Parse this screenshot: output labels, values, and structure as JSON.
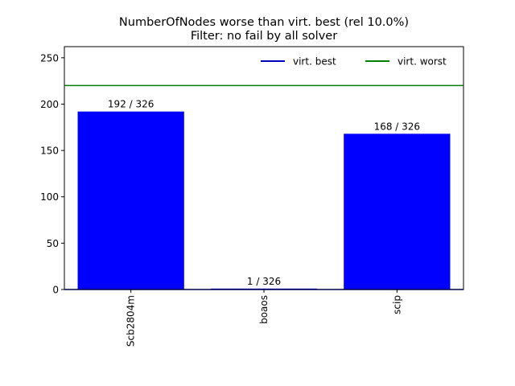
{
  "chart_data": {
    "type": "bar",
    "title": "NumberOfNodes worse than virt. best (rel 10.0%)",
    "subtitle": "Filter: no fail by all solver",
    "xlabel": "",
    "ylabel": "",
    "ylim": [
      0,
      262
    ],
    "yticks": [
      0,
      50,
      100,
      150,
      200,
      250
    ],
    "categories": [
      "Scb2804m",
      "boaos",
      "scip"
    ],
    "values": [
      192,
      1,
      168
    ],
    "bar_labels": [
      "192 / 326",
      "1 / 326",
      "168 / 326"
    ],
    "bar_color": "#0000ff",
    "reference_lines": [
      {
        "name": "virt. best",
        "value": 0,
        "color": "#0000bf"
      },
      {
        "name": "virt. worst",
        "value": 220,
        "color": "#008000"
      }
    ],
    "legend_position": "top-right",
    "grid": false
  }
}
